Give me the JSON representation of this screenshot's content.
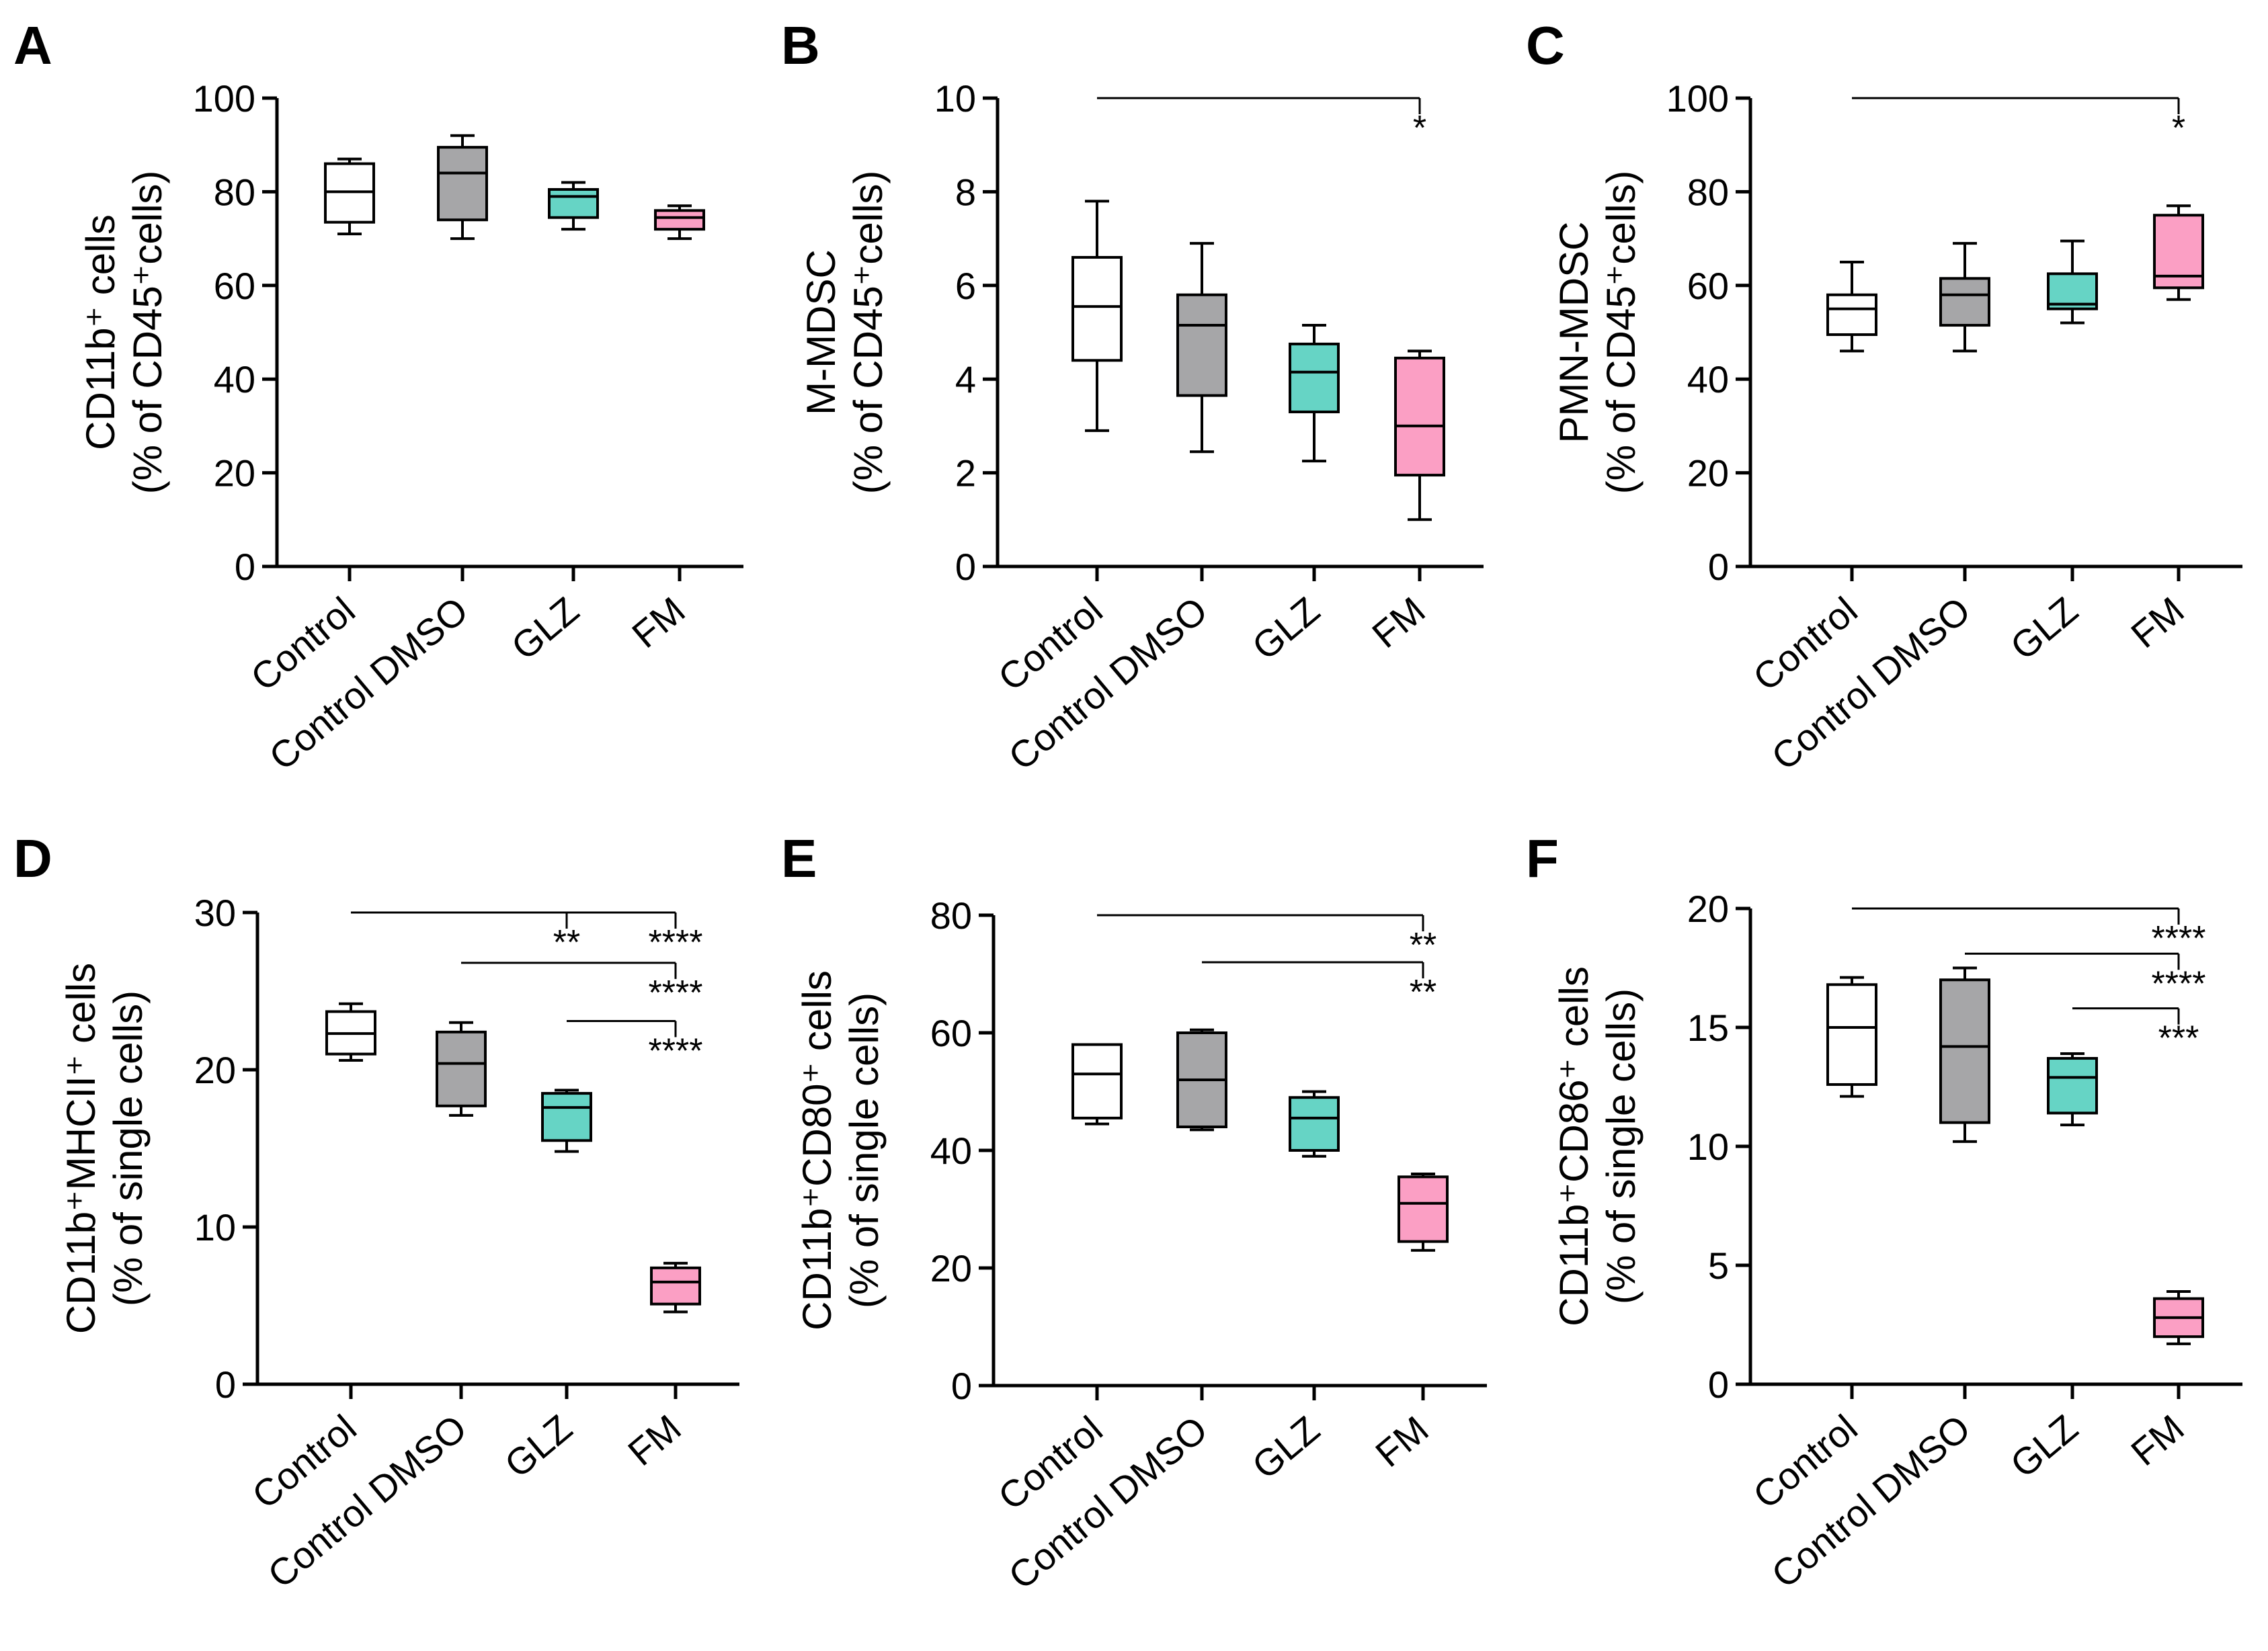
{
  "colors": {
    "Control": "#ffffff",
    "Control DMSO": "#a6a6a8",
    "GLZ": "#66d4c5",
    "FM": "#fb9fc4",
    "stroke": "#000000"
  },
  "chart_data": [
    {
      "type": "box",
      "panel": "A",
      "ylabel_line1": "CD11b⁺ cells",
      "ylabel_line2": "(% of CD45⁺cells)",
      "ylim": [
        0,
        100
      ],
      "yticks": [
        "0",
        "20",
        "40",
        "60",
        "80",
        "100"
      ],
      "categories": [
        "Control",
        "Control DMSO",
        "GLZ",
        "FM"
      ],
      "boxes": [
        {
          "min": 71,
          "q1": 73.5,
          "median": 80,
          "q3": 86,
          "max": 87
        },
        {
          "min": 70,
          "q1": 74,
          "median": 84,
          "q3": 89.5,
          "max": 92
        },
        {
          "min": 72,
          "q1": 74.5,
          "median": 79,
          "q3": 80.5,
          "max": 82
        },
        {
          "min": 70,
          "q1": 72,
          "median": 74.5,
          "q3": 76,
          "max": 77
        }
      ],
      "comparisons": []
    },
    {
      "type": "box",
      "panel": "B",
      "ylabel_line1": "M-MDSC",
      "ylabel_line2": "(% of CD45⁺cells)",
      "ylim": [
        0,
        10
      ],
      "yticks": [
        "0",
        "2",
        "4",
        "6",
        "8",
        "10"
      ],
      "categories": [
        "Control",
        "Control DMSO",
        "GLZ",
        "FM"
      ],
      "boxes": [
        {
          "min": 2.9,
          "q1": 4.4,
          "median": 5.55,
          "q3": 6.6,
          "max": 7.8
        },
        {
          "min": 2.45,
          "q1": 3.65,
          "median": 5.15,
          "q3": 5.8,
          "max": 6.9
        },
        {
          "min": 2.25,
          "q1": 3.3,
          "median": 4.15,
          "q3": 4.75,
          "max": 5.15
        },
        {
          "min": 1.0,
          "q1": 1.95,
          "median": 3.0,
          "q3": 4.45,
          "max": 4.6
        }
      ],
      "comparisons": [
        {
          "from": 0,
          "to": 3,
          "y": 10,
          "label": "*"
        }
      ]
    },
    {
      "type": "box",
      "panel": "C",
      "ylabel_line1": "PMN-MDSC",
      "ylabel_line2": "(% of CD45⁺cells)",
      "ylim": [
        0,
        100
      ],
      "yticks": [
        "0",
        "20",
        "40",
        "60",
        "80",
        "100"
      ],
      "categories": [
        "Control",
        "Control DMSO",
        "GLZ",
        "FM"
      ],
      "boxes": [
        {
          "min": 46,
          "q1": 49.5,
          "median": 55,
          "q3": 58,
          "max": 65
        },
        {
          "min": 46,
          "q1": 51.5,
          "median": 58,
          "q3": 61.5,
          "max": 69
        },
        {
          "min": 52,
          "q1": 55,
          "median": 56,
          "q3": 62.5,
          "max": 69.5
        },
        {
          "min": 57,
          "q1": 59.5,
          "median": 62,
          "q3": 75,
          "max": 77
        }
      ],
      "comparisons": [
        {
          "from": 0,
          "to": 3,
          "y": 100,
          "label": "*"
        }
      ]
    },
    {
      "type": "box",
      "panel": "D",
      "ylabel_line1": "CD11b⁺MHCII⁺ cells",
      "ylabel_line2": "(% of single cells)",
      "ylim": [
        0,
        30
      ],
      "yticks": [
        "0",
        "10",
        "20",
        "30"
      ],
      "categories": [
        "Control",
        "Control DMSO",
        "GLZ",
        "FM"
      ],
      "boxes": [
        {
          "min": 20.6,
          "q1": 21,
          "median": 22.3,
          "q3": 23.7,
          "max": 24.2
        },
        {
          "min": 17.1,
          "q1": 17.7,
          "median": 20.4,
          "q3": 22.4,
          "max": 23
        },
        {
          "min": 14.8,
          "q1": 15.5,
          "median": 17.6,
          "q3": 18.5,
          "max": 18.7
        },
        {
          "min": 4.6,
          "q1": 5.1,
          "median": 6.5,
          "q3": 7.4,
          "max": 7.7
        }
      ],
      "comparisons": [
        {
          "from": 0,
          "to": 3,
          "y": 30,
          "label": "****"
        },
        {
          "from": 0,
          "to": 2,
          "y": 30,
          "label": "**"
        },
        {
          "from": 1,
          "to": 3,
          "y": 26.8,
          "label": "****"
        },
        {
          "from": 2,
          "to": 3,
          "y": 23.1,
          "label": "****"
        }
      ]
    },
    {
      "type": "box",
      "panel": "E",
      "ylabel_line1": "CD11b⁺CD80⁺ cells",
      "ylabel_line2": "(% of single cells)",
      "ylim": [
        0,
        80
      ],
      "yticks": [
        "0",
        "20",
        "40",
        "60",
        "80"
      ],
      "categories": [
        "Control",
        "Control DMSO",
        "GLZ",
        "FM"
      ],
      "boxes": [
        {
          "min": 44.5,
          "q1": 45.5,
          "median": 53,
          "q3": 58,
          "max": 58
        },
        {
          "min": 43.5,
          "q1": 44,
          "median": 52,
          "q3": 60,
          "max": 60.5
        },
        {
          "min": 39,
          "q1": 40,
          "median": 45.5,
          "q3": 49,
          "max": 50
        },
        {
          "min": 23,
          "q1": 24.5,
          "median": 31,
          "q3": 35.5,
          "max": 36
        }
      ],
      "comparisons": [
        {
          "from": 0,
          "to": 3,
          "y": 80,
          "label": "**"
        },
        {
          "from": 1,
          "to": 3,
          "y": 72,
          "label": "**"
        }
      ]
    },
    {
      "type": "box",
      "panel": "F",
      "ylabel_line1": "CD11b⁺CD86⁺ cells",
      "ylabel_line2": "(% of single cells)",
      "ylim": [
        0,
        20
      ],
      "yticks": [
        "0",
        "5",
        "10",
        "15",
        "20"
      ],
      "categories": [
        "Control",
        "Control DMSO",
        "GLZ",
        "FM"
      ],
      "boxes": [
        {
          "min": 12.1,
          "q1": 12.6,
          "median": 15,
          "q3": 16.8,
          "max": 17.1
        },
        {
          "min": 10.2,
          "q1": 11,
          "median": 14.2,
          "q3": 17,
          "max": 17.5
        },
        {
          "min": 10.9,
          "q1": 11.4,
          "median": 12.9,
          "q3": 13.7,
          "max": 13.9
        },
        {
          "min": 1.7,
          "q1": 2,
          "median": 2.8,
          "q3": 3.6,
          "max": 3.9
        }
      ],
      "comparisons": [
        {
          "from": 0,
          "to": 3,
          "y": 20,
          "label": "****"
        },
        {
          "from": 1,
          "to": 3,
          "y": 18.1,
          "label": "****"
        },
        {
          "from": 2,
          "to": 3,
          "y": 15.8,
          "label": "***"
        }
      ]
    }
  ]
}
